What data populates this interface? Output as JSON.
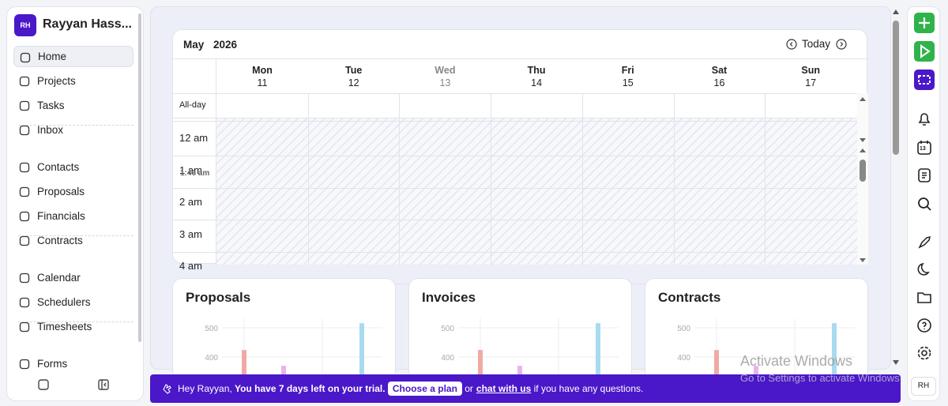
{
  "sidebar": {
    "avatar": "RH",
    "user": "Rayyan Hass...",
    "nav": [
      [
        "Home",
        "Projects",
        "Tasks",
        "Inbox"
      ],
      [
        "Contacts",
        "Proposals",
        "Financials",
        "Contracts"
      ],
      [
        "Calendar",
        "Schedulers",
        "Timesheets"
      ],
      [
        "Forms"
      ]
    ]
  },
  "calendar": {
    "month": "May",
    "year": "2026",
    "today": "Today",
    "allday": "All-day",
    "now": "1:46 am",
    "days": [
      {
        "name": "Mon",
        "date": "11"
      },
      {
        "name": "Tue",
        "date": "12"
      },
      {
        "name": "Wed",
        "date": "13"
      },
      {
        "name": "Thu",
        "date": "14"
      },
      {
        "name": "Fri",
        "date": "15"
      },
      {
        "name": "Sat",
        "date": "16"
      },
      {
        "name": "Sun",
        "date": "17"
      }
    ],
    "hours": [
      "12 am",
      "1 am",
      "2 am",
      "3 am",
      "4 am"
    ]
  },
  "cards": [
    {
      "title": "Proposals",
      "yticks": [
        500,
        400
      ],
      "series": [
        {
          "color": "#f0aaa6",
          "values": [
            424
          ]
        },
        {
          "color": "#e8b4ec",
          "values": [
            370
          ]
        },
        {
          "color": "#a9daf0",
          "values": [
            516
          ]
        }
      ]
    },
    {
      "title": "Invoices",
      "yticks": [
        500,
        400
      ],
      "series": [
        {
          "color": "#f0aaa6",
          "values": [
            424
          ]
        },
        {
          "color": "#e8b4ec",
          "values": [
            370
          ]
        },
        {
          "color": "#a9daf0",
          "values": [
            516
          ]
        }
      ]
    },
    {
      "title": "Contracts",
      "yticks": [
        500,
        400
      ],
      "series": [
        {
          "color": "#f0aaa6",
          "values": [
            424
          ]
        },
        {
          "color": "#e8b4ec",
          "values": [
            370
          ]
        },
        {
          "color": "#a9daf0",
          "values": [
            516
          ]
        }
      ]
    }
  ],
  "banner": {
    "greeting": "Hey Rayyan,",
    "trial": "You have 7 days left on your trial.",
    "button": "Choose a plan",
    "or": "or",
    "link": "chat with us",
    "tail": "if you have any questions."
  },
  "rightbar": {
    "calendar_day": "13",
    "avatar": "RH"
  },
  "watermark": {
    "title": "Activate Windows",
    "text": "Go to Settings to activate Windows."
  }
}
